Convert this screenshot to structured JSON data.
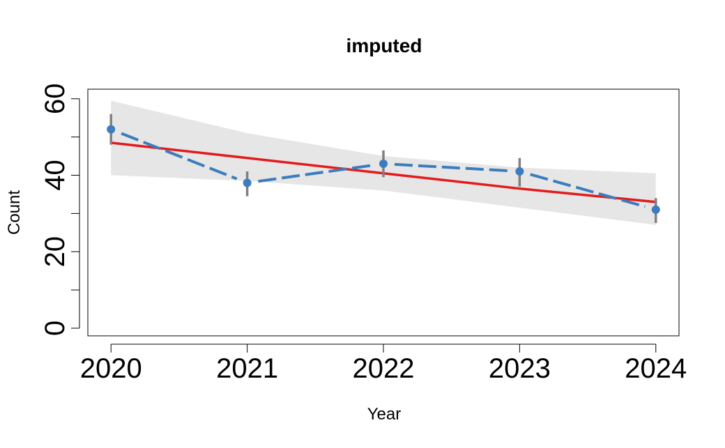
{
  "chart_data": {
    "type": "line",
    "title": "imputed",
    "xlabel": "Year",
    "ylabel": "Count",
    "x": [
      2020,
      2021,
      2022,
      2023,
      2024
    ],
    "x_tick_labels": [
      "2020",
      "2021",
      "2022",
      "2023",
      "2024"
    ],
    "y_ticks": [
      0,
      10,
      20,
      30,
      40,
      50,
      60
    ],
    "y_tick_labels": [
      "0",
      "",
      "20",
      "",
      "40",
      "",
      "60"
    ],
    "ylim": [
      -2,
      62.5
    ],
    "xlim": [
      2019.83,
      2024.17
    ],
    "grid": false,
    "series": [
      {
        "role": "observed",
        "values": [
          52,
          38,
          43,
          41,
          31
        ],
        "error_low": [
          48,
          34.5,
          39.5,
          37,
          27.5
        ],
        "error_high": [
          56,
          41,
          46.5,
          44.5,
          34
        ],
        "color": "#3b7dbd",
        "line_style": "dashed",
        "marker": "circle",
        "error_color": "#808080"
      },
      {
        "role": "trend",
        "values": [
          48.5,
          44.5,
          40.5,
          36.5,
          33
        ],
        "color": "#e41a1c",
        "line_style": "solid"
      },
      {
        "role": "confidence_band",
        "lower": [
          40,
          38.5,
          36,
          31.5,
          27
        ],
        "upper": [
          59.5,
          51,
          45,
          42,
          40.5
        ],
        "color": "#e6e6e6"
      }
    ]
  }
}
